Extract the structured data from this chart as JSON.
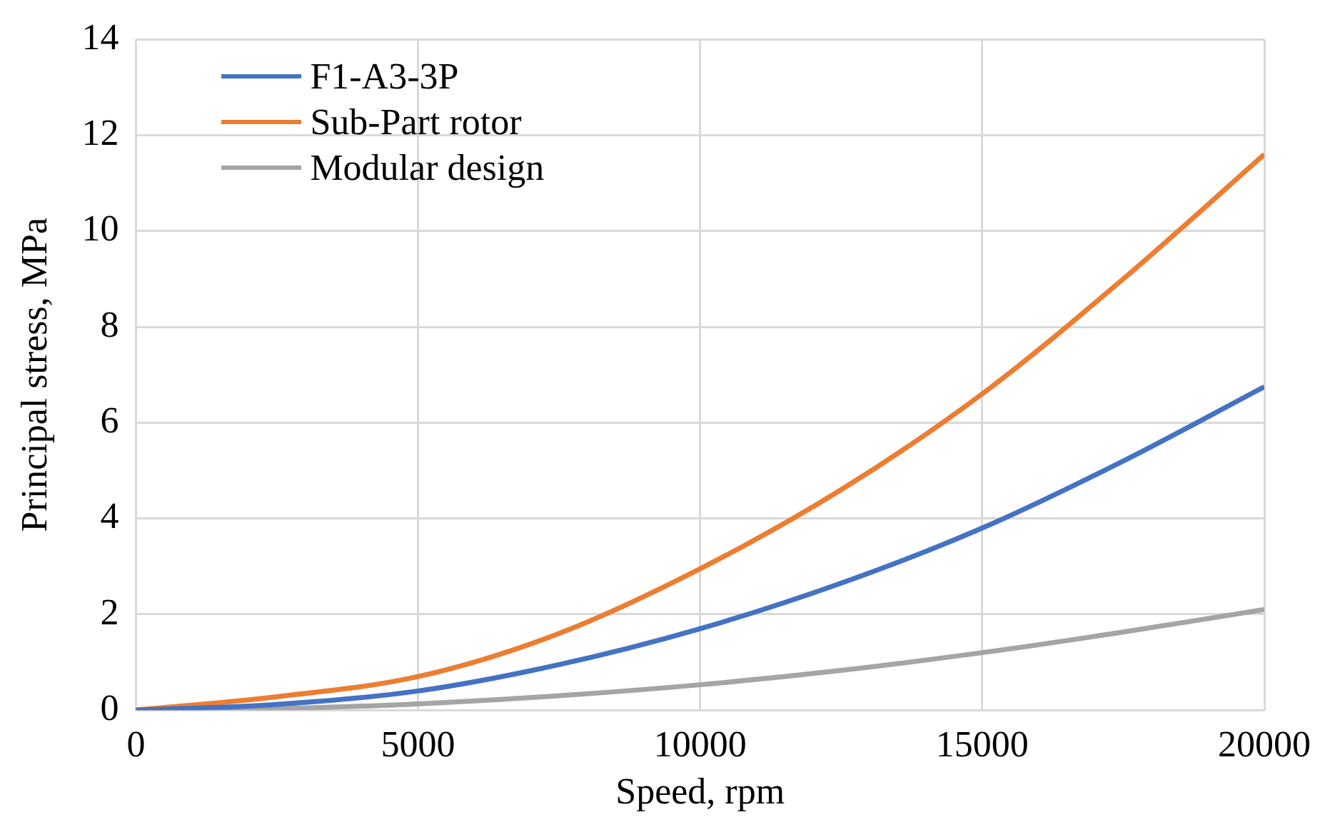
{
  "chart_data": {
    "type": "line",
    "xlabel": "Speed, rpm",
    "ylabel": "Principal stress, MPa",
    "x": [
      0,
      2500,
      5000,
      7500,
      10000,
      12500,
      15000,
      17500,
      20000
    ],
    "series": [
      {
        "name": "F1-A3-3P",
        "color": "#4472c4",
        "values": [
          0,
          0.12,
          0.4,
          0.95,
          1.7,
          2.65,
          3.8,
          5.2,
          6.75
        ]
      },
      {
        "name": "Sub-Part rotor",
        "color": "#ed7d31",
        "values": [
          0,
          0.28,
          0.7,
          1.6,
          2.95,
          4.6,
          6.6,
          9.0,
          11.6
        ]
      },
      {
        "name": "Modular design",
        "color": "#a5a5a5",
        "values": [
          0,
          0.03,
          0.13,
          0.3,
          0.53,
          0.83,
          1.2,
          1.63,
          2.1
        ]
      }
    ],
    "xlim": [
      0,
      20000
    ],
    "xticks": [
      0,
      5000,
      10000,
      15000,
      20000
    ],
    "ylim": [
      0,
      14
    ],
    "yticks": [
      0,
      2,
      4,
      6,
      8,
      10,
      12,
      14
    ],
    "grid": true,
    "legend": "top left",
    "marker": "none",
    "line_style": "solid"
  }
}
